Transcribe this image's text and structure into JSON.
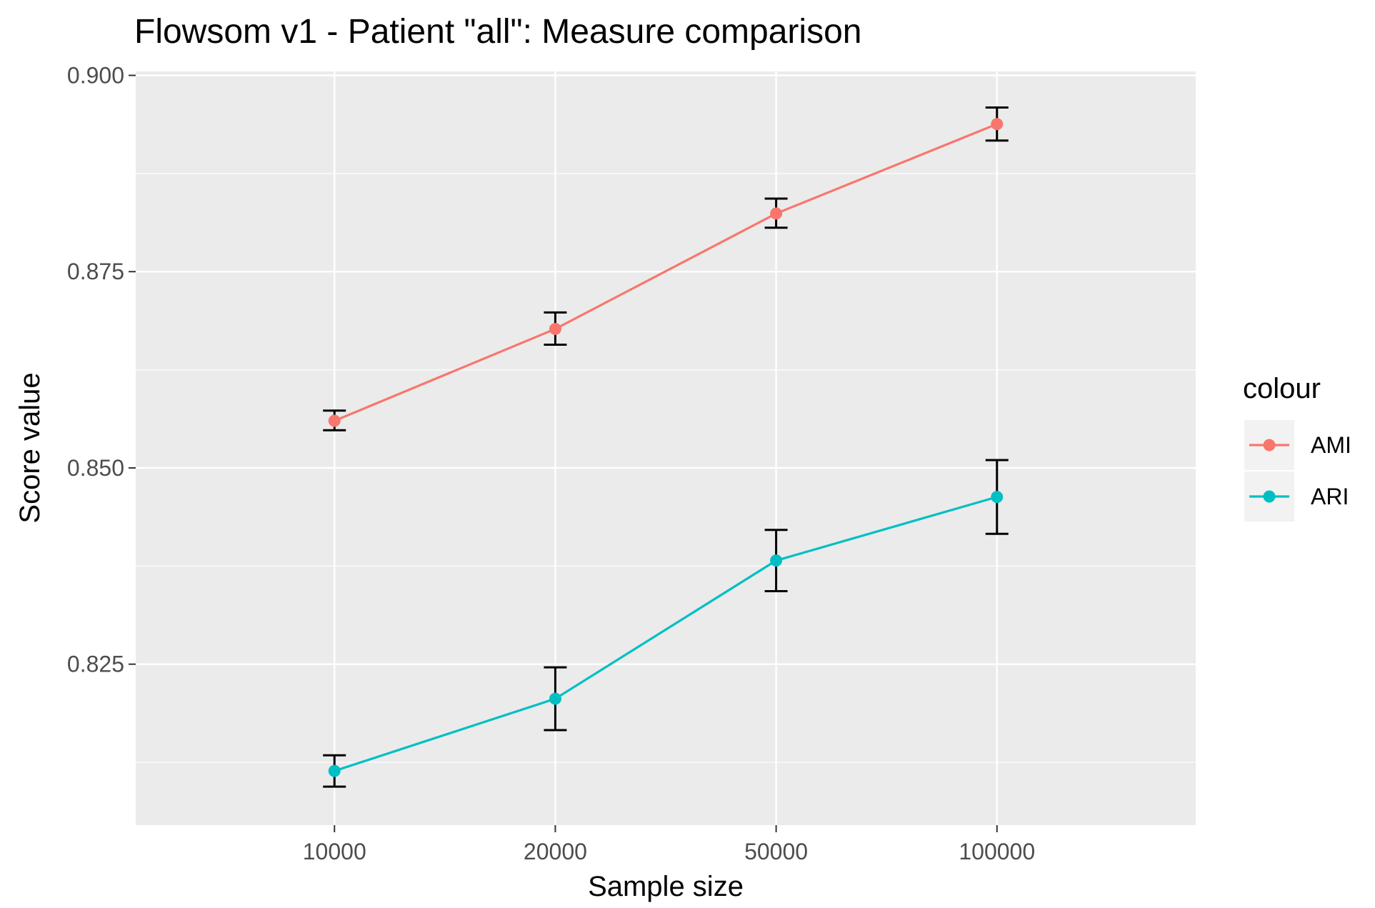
{
  "chart_data": {
    "type": "line",
    "title": "Flowsom v1 - Patient \"all\": Measure comparison",
    "xlabel": "Sample size",
    "ylabel": "Score value",
    "categories": [
      "10000",
      "20000",
      "50000",
      "100000"
    ],
    "ylim": [
      0.8045,
      0.9005
    ],
    "yticks": [
      0.825,
      0.85,
      0.875,
      0.9
    ],
    "ytick_labels": [
      "0.825",
      "0.850",
      "0.875",
      "0.900"
    ],
    "grid": true,
    "legend": {
      "title": "colour",
      "position": "right"
    },
    "series": [
      {
        "name": "AMI",
        "color": "#F8766D",
        "values": [
          0.856,
          0.8677,
          0.8824,
          0.8938
        ],
        "err_low": [
          0.8548,
          0.8657,
          0.8806,
          0.8917
        ],
        "err_high": [
          0.8573,
          0.8698,
          0.8843,
          0.8959
        ]
      },
      {
        "name": "ARI",
        "color": "#00BFC4",
        "values": [
          0.8114,
          0.8206,
          0.8382,
          0.8463
        ],
        "err_low": [
          0.8094,
          0.8166,
          0.8343,
          0.8416
        ],
        "err_high": [
          0.8134,
          0.8246,
          0.8421,
          0.851
        ]
      }
    ],
    "error_bar_color": "#000000",
    "panel_bg": "#EBEBEB",
    "grid_color": "#FFFFFF"
  }
}
